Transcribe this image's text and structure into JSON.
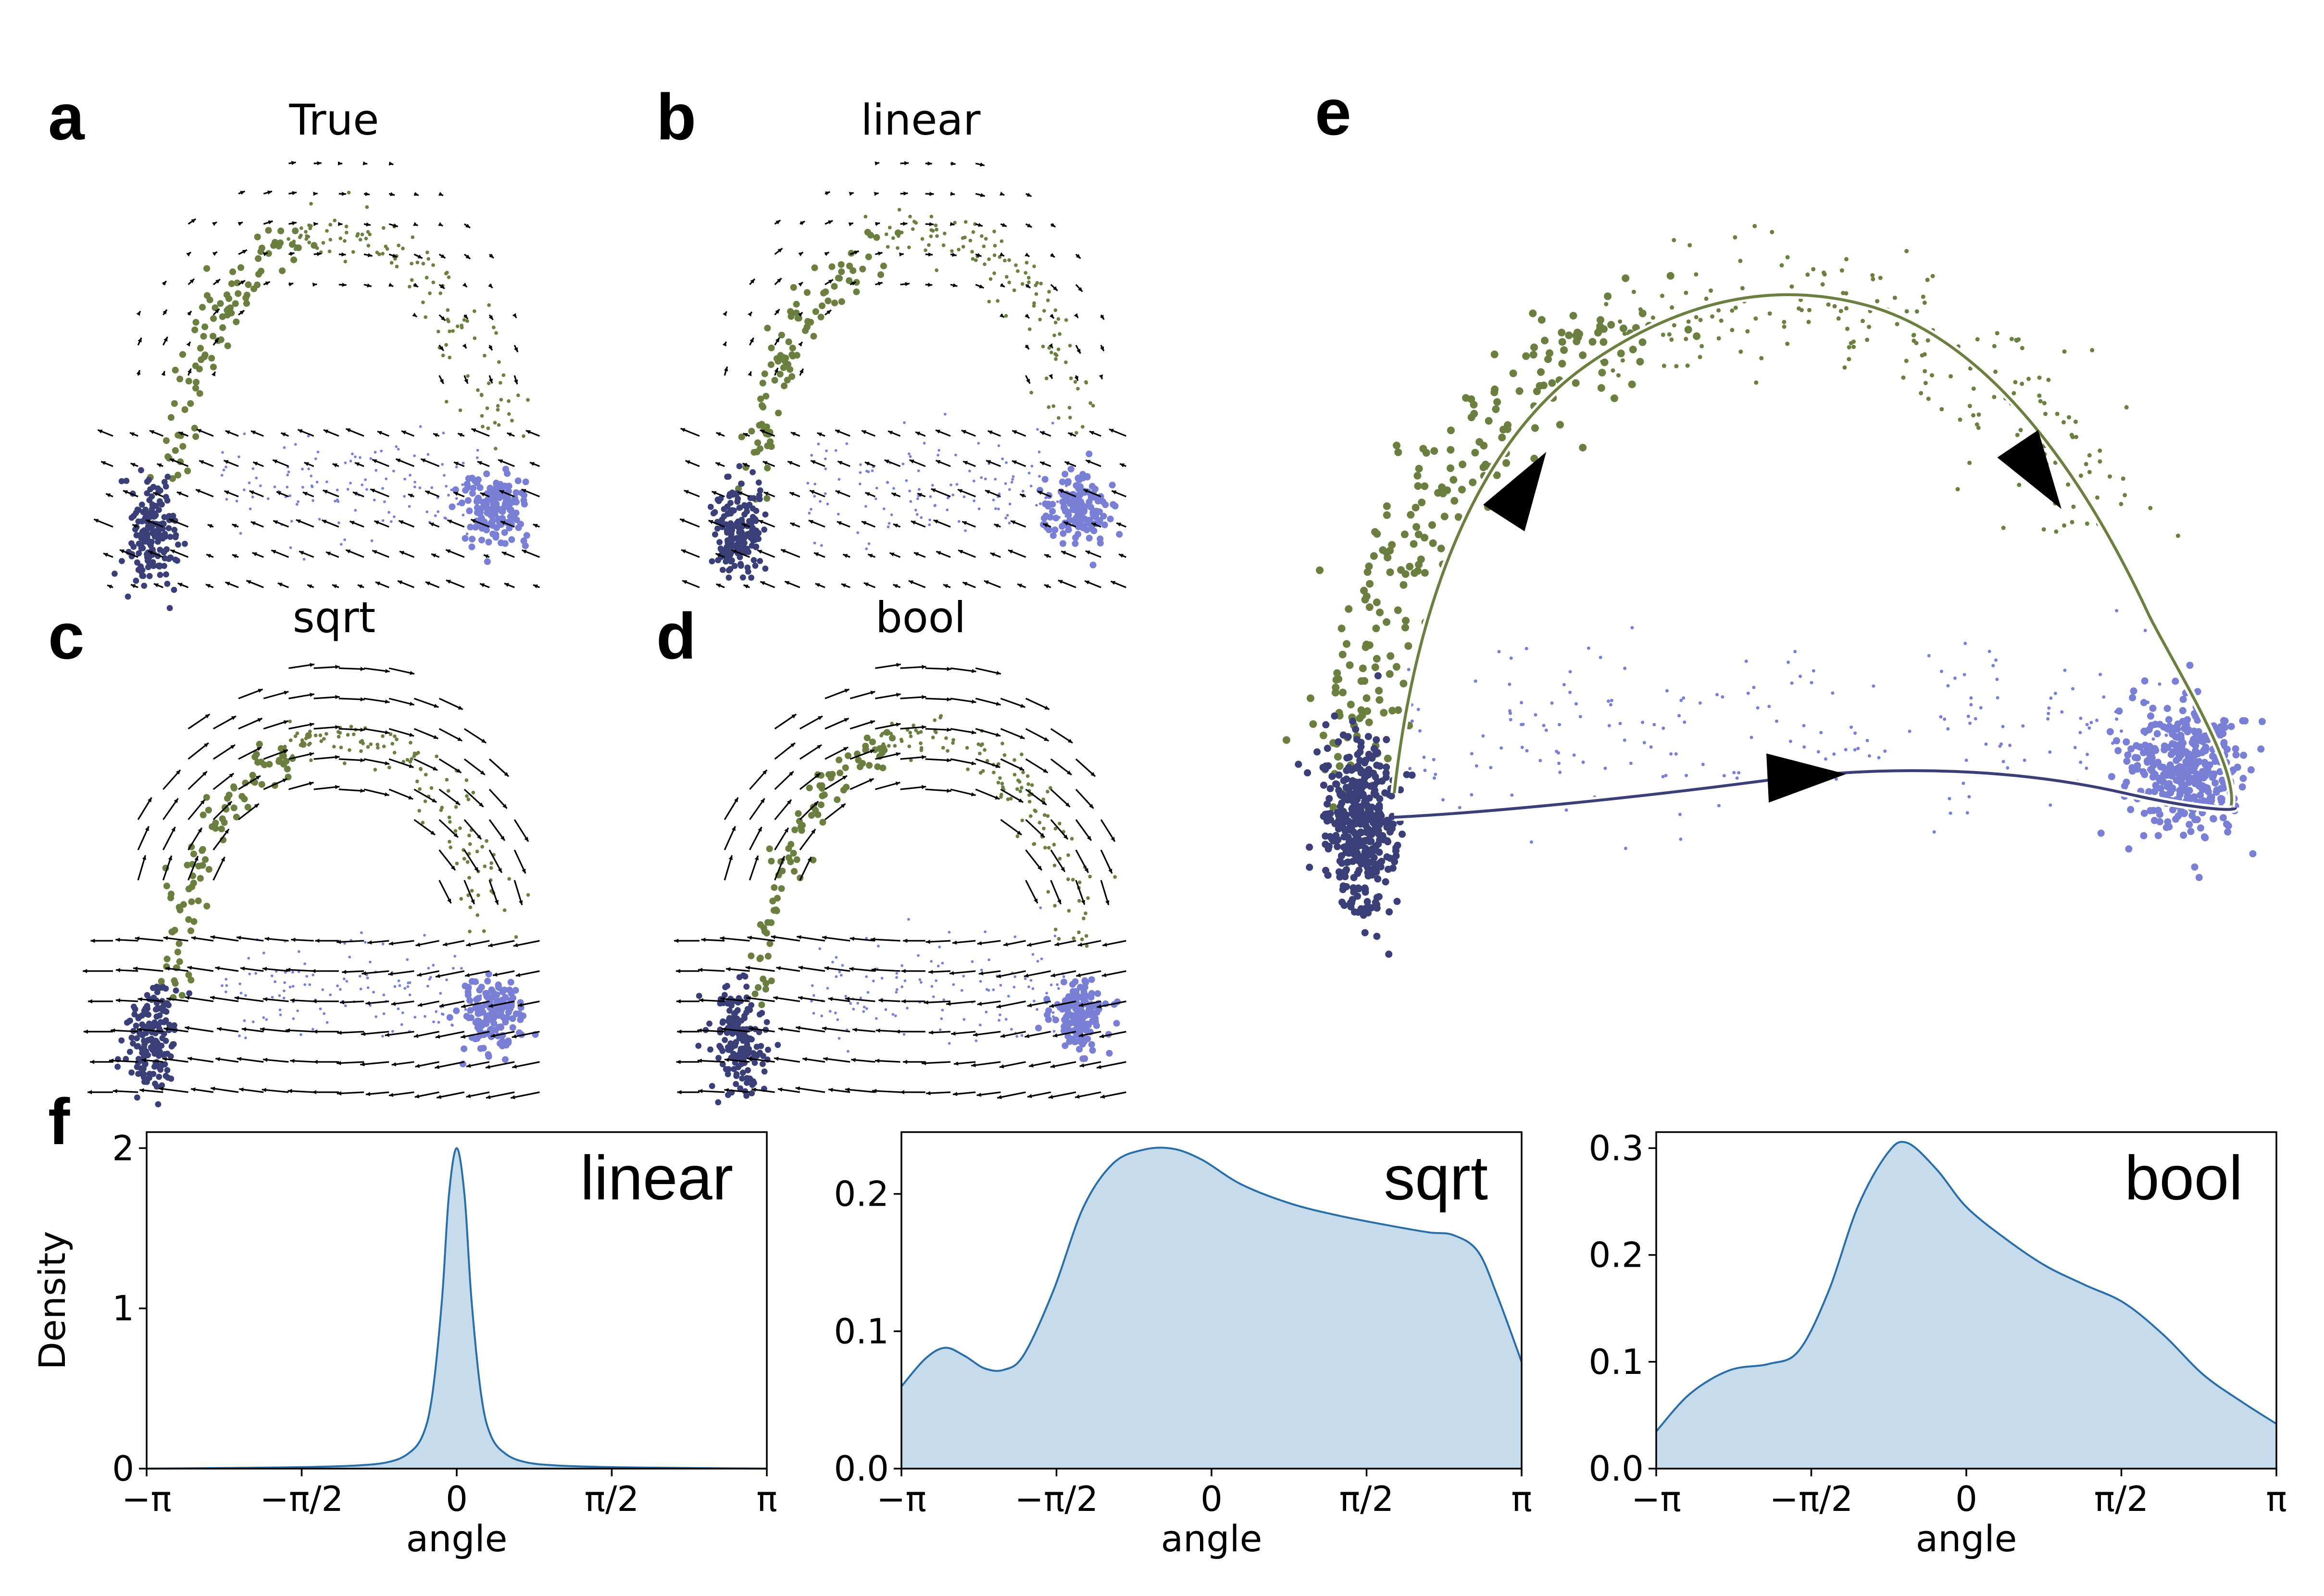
{
  "panel_letters": {
    "a": "a",
    "b": "b",
    "c": "c",
    "d": "d",
    "e": "e",
    "f": "f"
  },
  "panel_titles": {
    "a": "True",
    "b": "linear",
    "c": "sqrt",
    "d": "bool"
  },
  "colors": {
    "green": "#6b8040",
    "dark_blue": "#3a3f78",
    "light_blue": "#7a7fd6",
    "kde_fill": "#c6dbec",
    "kde_line": "#2a6ea8",
    "arrow": "#000000"
  },
  "chart_data": [
    {
      "type": "scatter",
      "title": "True",
      "note": "embedding with velocity arrows; clusters green, dark blue, light blue",
      "series": [
        {
          "color": "green"
        },
        {
          "color": "dark_blue"
        },
        {
          "color": "light_blue"
        }
      ]
    },
    {
      "type": "scatter",
      "title": "linear",
      "series": [
        {
          "color": "green"
        },
        {
          "color": "dark_blue"
        },
        {
          "color": "light_blue"
        }
      ]
    },
    {
      "type": "scatter",
      "title": "sqrt",
      "series": [
        {
          "color": "green"
        },
        {
          "color": "dark_blue"
        },
        {
          "color": "light_blue"
        }
      ]
    },
    {
      "type": "scatter",
      "title": "bool",
      "series": [
        {
          "color": "green"
        },
        {
          "color": "dark_blue"
        },
        {
          "color": "light_blue"
        }
      ]
    },
    {
      "type": "scatter",
      "title": "",
      "note": "embedding with principal curves and direction arrows",
      "series": [
        {
          "color": "green"
        },
        {
          "color": "dark_blue"
        },
        {
          "color": "light_blue"
        }
      ]
    },
    {
      "type": "area",
      "label": "linear",
      "xlabel": "angle",
      "ylabel": "Density",
      "xlim": [
        -3.1416,
        3.1416
      ],
      "ylim": [
        0,
        2.1
      ],
      "xticks": [
        "−π",
        "−π/2",
        "0",
        "π/2",
        "π"
      ],
      "yticks": [
        "0",
        "1",
        "2"
      ],
      "x": [
        -3.14,
        -2.5,
        -2.0,
        -1.5,
        -1.0,
        -0.7,
        -0.5,
        -0.35,
        -0.25,
        -0.15,
        -0.08,
        0.0,
        0.08,
        0.15,
        0.25,
        0.35,
        0.5,
        0.7,
        1.0,
        1.5,
        2.0,
        2.5,
        3.14
      ],
      "y": [
        0.0,
        0.003,
        0.006,
        0.01,
        0.02,
        0.04,
        0.09,
        0.2,
        0.45,
        1.05,
        1.7,
        2.0,
        1.7,
        1.05,
        0.45,
        0.2,
        0.09,
        0.04,
        0.02,
        0.01,
        0.006,
        0.003,
        0.0
      ]
    },
    {
      "type": "area",
      "label": "sqrt",
      "xlabel": "angle",
      "ylabel": "",
      "xlim": [
        -3.1416,
        3.1416
      ],
      "ylim": [
        0,
        0.245
      ],
      "xticks": [
        "−π",
        "−π/2",
        "0",
        "π/2",
        "π"
      ],
      "yticks": [
        "0.0",
        "0.1",
        "0.2"
      ],
      "x": [
        -3.14,
        -2.9,
        -2.7,
        -2.5,
        -2.3,
        -2.1,
        -1.9,
        -1.6,
        -1.3,
        -1.0,
        -0.7,
        -0.4,
        -0.1,
        0.3,
        0.8,
        1.3,
        1.8,
        2.2,
        2.45,
        2.7,
        2.9,
        3.14
      ],
      "y": [
        0.06,
        0.08,
        0.088,
        0.082,
        0.073,
        0.072,
        0.083,
        0.13,
        0.19,
        0.222,
        0.232,
        0.233,
        0.225,
        0.207,
        0.193,
        0.184,
        0.177,
        0.172,
        0.17,
        0.158,
        0.125,
        0.078
      ]
    },
    {
      "type": "area",
      "label": "bool",
      "xlabel": "angle",
      "ylabel": "",
      "xlim": [
        -3.1416,
        3.1416
      ],
      "ylim": [
        0,
        0.315
      ],
      "xticks": [
        "−π",
        "−π/2",
        "0",
        "π/2",
        "π"
      ],
      "yticks": [
        "0.0",
        "0.1",
        "0.2",
        "0.3"
      ],
      "x": [
        -3.14,
        -2.8,
        -2.4,
        -2.0,
        -1.7,
        -1.4,
        -1.1,
        -0.8,
        -0.6,
        -0.3,
        0.0,
        0.4,
        0.8,
        1.2,
        1.6,
        2.0,
        2.4,
        2.8,
        3.14
      ],
      "y": [
        0.035,
        0.07,
        0.092,
        0.098,
        0.11,
        0.165,
        0.245,
        0.295,
        0.305,
        0.28,
        0.245,
        0.215,
        0.19,
        0.172,
        0.155,
        0.125,
        0.088,
        0.062,
        0.042
      ]
    }
  ]
}
